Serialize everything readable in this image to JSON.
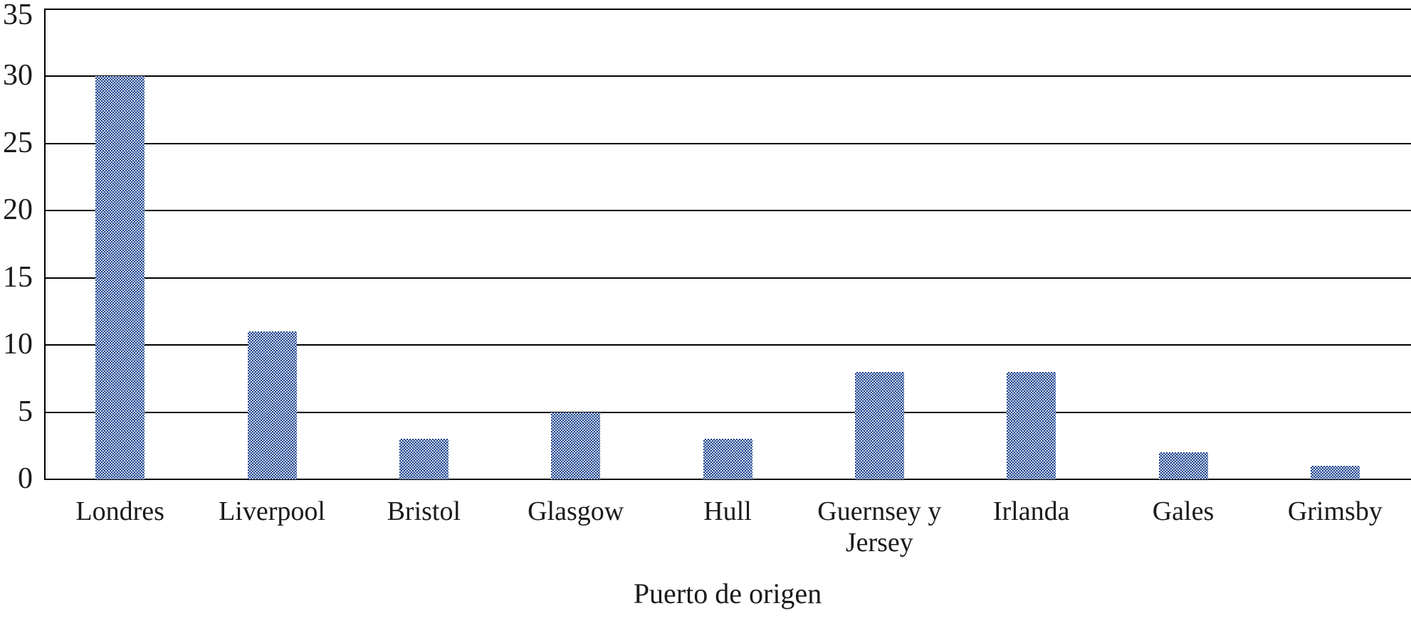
{
  "chart_data": {
    "type": "bar",
    "title": "",
    "categories": [
      "Londres",
      "Liverpool",
      "Bristol",
      "Glasgow",
      "Hull",
      "Guernsey y Jersey",
      "Irlanda",
      "Gales",
      "Grimsby"
    ],
    "values": [
      30,
      11,
      3,
      5,
      3,
      8,
      8,
      2,
      1
    ],
    "xlabel": "Puerto de origen",
    "ylabel": "",
    "ylim": [
      0,
      35
    ],
    "yticks": [
      0,
      5,
      10,
      15,
      20,
      25,
      30,
      35
    ],
    "grid": true,
    "legend": false,
    "bar_pattern_dark_color": "#21408f",
    "bar_pattern_light_color": "#cfe0ec",
    "axis_color": "#000000",
    "text_color": "#1a1a1a",
    "background_color": "#ffffff"
  }
}
